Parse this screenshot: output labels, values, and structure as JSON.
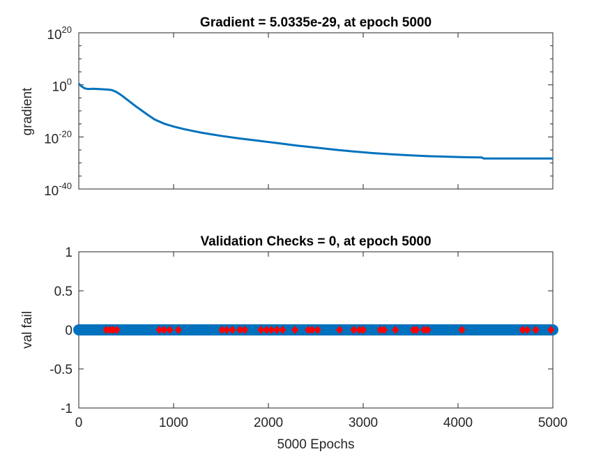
{
  "colors": {
    "series": "#0072BD",
    "marker": "#FF0000",
    "axis": "#262626"
  },
  "chart_data": [
    {
      "type": "line",
      "title": "Gradient = 5.0335e-29, at epoch 5000",
      "xlabel": "",
      "ylabel": "gradient",
      "yscale": "log",
      "xlim": [
        0,
        5000
      ],
      "ylim_exponents": [
        -40,
        20
      ],
      "ytick_bases": [
        "10",
        "10",
        "10",
        "10"
      ],
      "ytick_exponents": [
        "-40",
        "-20",
        "0",
        "20"
      ],
      "grid": false,
      "series": [
        {
          "x": [
            0,
            20,
            40,
            60,
            80,
            100,
            150,
            200,
            250,
            300,
            350,
            400,
            450,
            500,
            550,
            600,
            650,
            700,
            750,
            800,
            900,
            1000,
            1100,
            1200,
            1300,
            1400,
            1500,
            1700,
            1900,
            2100,
            2300,
            2500,
            2700,
            2900,
            3100,
            3300,
            3500,
            3700,
            3900,
            4100,
            4250,
            4270,
            4500,
            5000
          ],
          "log10y": [
            0.5,
            -0.3,
            -0.8,
            -1.3,
            -1.5,
            -1.6,
            -1.5,
            -1.6,
            -1.7,
            -1.8,
            -2.0,
            -2.8,
            -4.0,
            -5.4,
            -6.8,
            -8.2,
            -9.5,
            -10.8,
            -12.1,
            -13.3,
            -14.9,
            -16.0,
            -16.9,
            -17.7,
            -18.4,
            -19.0,
            -19.6,
            -20.6,
            -21.5,
            -22.4,
            -23.3,
            -24.1,
            -24.9,
            -25.6,
            -26.2,
            -26.7,
            -27.1,
            -27.4,
            -27.6,
            -27.8,
            -27.9,
            -28.3,
            -28.3,
            -28.3
          ]
        }
      ]
    },
    {
      "type": "line",
      "title": "Validation Checks = 0, at epoch 5000",
      "xlabel": "5000 Epochs",
      "ylabel": "val fail",
      "xlim": [
        0,
        5000
      ],
      "ylim": [
        -1,
        1
      ],
      "xticks": [
        "0",
        "1000",
        "2000",
        "3000",
        "4000",
        "5000"
      ],
      "yticks": [
        "-1",
        "-0.5",
        "0",
        "0.5",
        "1"
      ],
      "grid": false,
      "series": [
        {
          "x": [
            0,
            5000
          ],
          "values": [
            0,
            0
          ]
        }
      ],
      "marker_x": [
        290,
        330,
        360,
        400,
        850,
        900,
        960,
        1050,
        1510,
        1560,
        1620,
        1700,
        1750,
        1920,
        1980,
        2030,
        2090,
        2150,
        2280,
        2420,
        2460,
        2520,
        2750,
        2900,
        2960,
        3000,
        3180,
        3220,
        3340,
        3530,
        3560,
        3640,
        3680,
        4040,
        4680,
        4730,
        4820,
        4980
      ]
    }
  ]
}
